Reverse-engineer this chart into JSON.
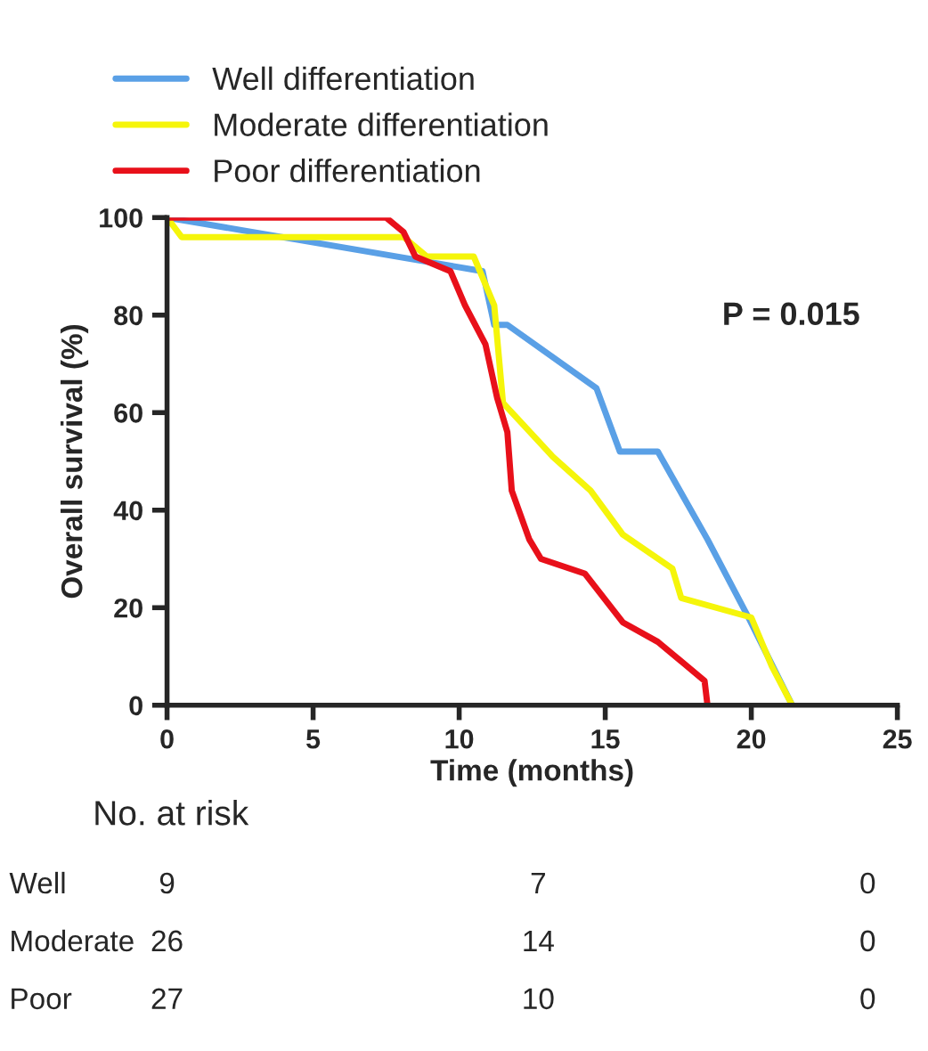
{
  "chart_data": {
    "type": "line",
    "xlabel": "Time (months)",
    "ylabel": "Overall survival (%)",
    "xlim": [
      0,
      25
    ],
    "xticks": [
      0,
      5,
      10,
      15,
      20,
      25
    ],
    "ylim": [
      0,
      100
    ],
    "yticks": [
      0,
      20,
      40,
      60,
      80,
      100
    ],
    "grid": false,
    "legend": "top",
    "marker": "none",
    "line_style": "solid",
    "series": [
      {
        "name": "Well differentiation",
        "color": "#5aa0e6",
        "x": [
          0,
          10.8,
          11.2,
          11.65,
          14.7,
          15.5,
          16.8,
          18.5,
          19.9,
          21.4
        ],
        "values": [
          100,
          89,
          78,
          78,
          65,
          52,
          52,
          34,
          18,
          0
        ]
      },
      {
        "name": "Moderate differentiation",
        "color": "#f5f50a",
        "x": [
          0,
          0.5,
          8.1,
          8.9,
          10.5,
          11.2,
          11.5,
          13.2,
          14.5,
          15.6,
          17.3,
          17.6,
          20,
          20.7,
          21.4
        ],
        "values": [
          100,
          96,
          96,
          92,
          92,
          82,
          62,
          51,
          44,
          35,
          28,
          22,
          18,
          8,
          0
        ]
      },
      {
        "name": "Poor differentiation",
        "color": "#e8101a",
        "x": [
          0,
          7.5,
          8.1,
          8.5,
          9.7,
          10.2,
          10.9,
          11.3,
          11.65,
          11.8,
          12.4,
          12.8,
          14.3,
          15.6,
          16.8,
          18.4,
          18.5
        ],
        "values": [
          100,
          100,
          97,
          92,
          89,
          82,
          74,
          63,
          56,
          44,
          34,
          30,
          27,
          17,
          13,
          5,
          0
        ]
      }
    ],
    "annotations": [
      "P = 0.015",
      "No. at risk",
      "Well",
      "9",
      "7",
      "0",
      "Moderate",
      "26",
      "14",
      "0",
      "Poor",
      "27",
      "10",
      "0"
    ]
  }
}
